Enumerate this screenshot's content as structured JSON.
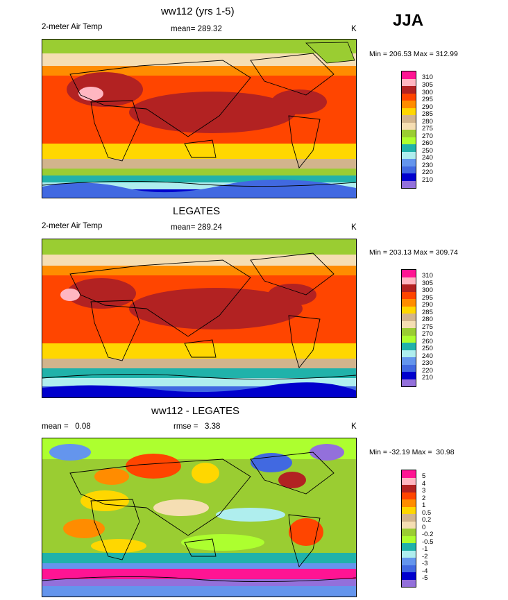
{
  "season": "JJA",
  "units": "K",
  "panels": [
    {
      "title": "ww112 (yrs 1-5)",
      "left_label": "2-meter Air Temp",
      "stat_label": "mean= 289.32",
      "units": "K",
      "minmax": "Min = 206.53 Max = 312.99"
    },
    {
      "title": "LEGATES",
      "left_label": "2-meter Air Temp",
      "stat_label": "mean= 289.24",
      "units": "K",
      "minmax": "Min = 203.13 Max = 309.74"
    },
    {
      "title": "ww112 - LEGATES",
      "left_label": "mean =   0.08",
      "stat_label": "rmse =   3.38",
      "units": "K",
      "minmax": "Min = -32.19 Max =  30.98"
    }
  ],
  "colorbars": {
    "absolute": {
      "labels": [
        "310",
        "305",
        "300",
        "295",
        "290",
        "285",
        "280",
        "275",
        "270",
        "260",
        "250",
        "240",
        "230",
        "220",
        "210"
      ],
      "colors": [
        "#ff1493",
        "#ffb6c1",
        "#b22222",
        "#ff4500",
        "#ff8c00",
        "#ffd700",
        "#d2b48c",
        "#f5deb3",
        "#9acd32",
        "#adff2f",
        "#20b2aa",
        "#afeeee",
        "#6495ed",
        "#4169e1",
        "#0000cd",
        "#9370db"
      ]
    },
    "difference": {
      "labels": [
        "5",
        "4",
        "3",
        "2",
        "1",
        "0.5",
        "0.2",
        "0",
        "-0.2",
        "-0.5",
        "-1",
        "-2",
        "-3",
        "-4",
        "-5"
      ],
      "colors": [
        "#ff1493",
        "#ffb6c1",
        "#b22222",
        "#ff4500",
        "#ff8c00",
        "#ffd700",
        "#d2b48c",
        "#f5deb3",
        "#9acd32",
        "#adff2f",
        "#20b2aa",
        "#afeeee",
        "#6495ed",
        "#4169e1",
        "#0000cd",
        "#9370db"
      ]
    }
  },
  "chart_data": [
    {
      "type": "heatmap",
      "title": "ww112 (yrs 1-5)",
      "variable": "2-meter Air Temp",
      "units": "K",
      "mean": 289.32,
      "min": 206.53,
      "max": 312.99,
      "levels": [
        210,
        220,
        230,
        240,
        250,
        260,
        270,
        275,
        280,
        285,
        290,
        295,
        300,
        305,
        310
      ]
    },
    {
      "type": "heatmap",
      "title": "LEGATES",
      "variable": "2-meter Air Temp",
      "units": "K",
      "mean": 289.24,
      "min": 203.13,
      "max": 309.74,
      "levels": [
        210,
        220,
        230,
        240,
        250,
        260,
        270,
        275,
        280,
        285,
        290,
        295,
        300,
        305,
        310
      ]
    },
    {
      "type": "heatmap",
      "title": "ww112 - LEGATES",
      "units": "K",
      "mean": 0.08,
      "rmse": 3.38,
      "min": -32.19,
      "max": 30.98,
      "levels": [
        -5,
        -4,
        -3,
        -2,
        -1,
        -0.5,
        -0.2,
        0,
        0.2,
        0.5,
        1,
        2,
        3,
        4,
        5
      ]
    }
  ]
}
